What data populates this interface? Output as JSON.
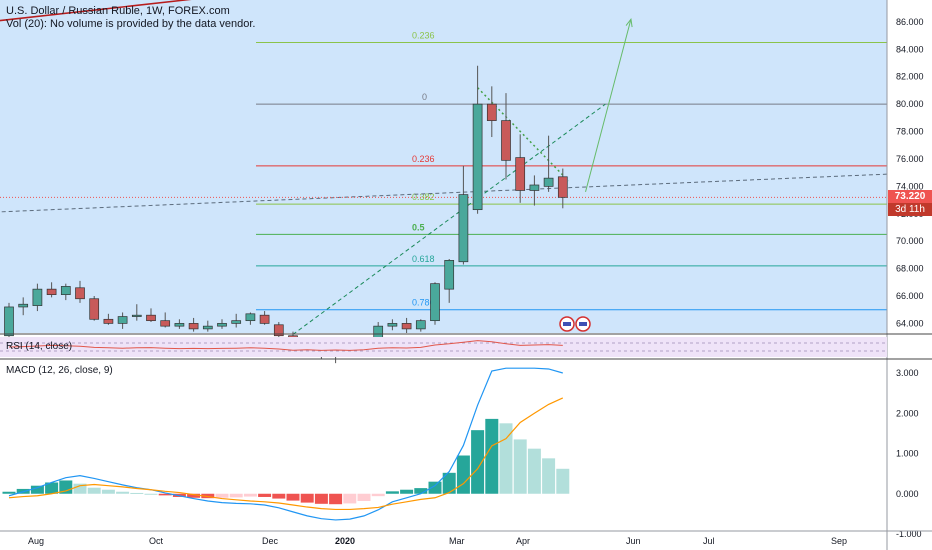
{
  "header": {
    "title": "U.S. Dollar / Russian Ruble, 1W, FOREX.com",
    "volume_note": "Vol (20): No volume is provided by the data vendor."
  },
  "price_tags": {
    "last_price": "73.220",
    "countdown": "3d 11h"
  },
  "colors": {
    "background_shade": "#cfe5fb",
    "bull": "#26a69a",
    "bear": "#ef5350",
    "candle_fill_up": "#4aa89b",
    "candle_fill_down": "#c85a5a",
    "macd_line": "#2196f3",
    "signal_line": "#ff9800",
    "rsi_line": "#e1574b"
  },
  "chart_data": [
    {
      "type": "candlestick",
      "title": "U.S. Dollar / Russian Ruble, 1W, FOREX.com",
      "xlabel": "",
      "ylabel": "",
      "x_tick_labels": [
        "Aug",
        "Oct",
        "Dec",
        "2020",
        "Mar",
        "Apr",
        "Jun",
        "Jul",
        "Sep"
      ],
      "y_tick_labels": [
        "64.000",
        "66.000",
        "68.000",
        "70.000",
        "72.000",
        "74.000",
        "76.000",
        "78.000",
        "80.000",
        "82.000",
        "84.000",
        "86.000"
      ],
      "ylim": [
        63.3,
        87.6
      ],
      "grid": false,
      "fib_levels": [
        {
          "label": "0.236",
          "price": 84.5,
          "color": "#8bc34a"
        },
        {
          "label": "0",
          "price": 80.0,
          "color": "#787b86"
        },
        {
          "label": "0.236",
          "price": 75.5,
          "color": "#e53935"
        },
        {
          "label": "0.382",
          "price": 72.7,
          "color": "#8bc34a"
        },
        {
          "label": "0.5",
          "price": 70.5,
          "color": "#4caf50"
        },
        {
          "label": "0.618",
          "price": 68.2,
          "color": "#26a69a"
        },
        {
          "label": "0.786",
          "price": 65.0,
          "color": "#2196f3"
        }
      ],
      "candles": [
        {
          "o": 63.1,
          "h": 65.5,
          "l": 63.0,
          "c": 65.2
        },
        {
          "o": 65.2,
          "h": 65.9,
          "l": 64.6,
          "c": 65.4
        },
        {
          "o": 65.3,
          "h": 66.9,
          "l": 64.9,
          "c": 66.5
        },
        {
          "o": 66.5,
          "h": 67.0,
          "l": 65.9,
          "c": 66.1
        },
        {
          "o": 66.1,
          "h": 66.9,
          "l": 65.7,
          "c": 66.7
        },
        {
          "o": 66.6,
          "h": 67.1,
          "l": 65.5,
          "c": 65.8
        },
        {
          "o": 65.8,
          "h": 66.0,
          "l": 64.2,
          "c": 64.3
        },
        {
          "o": 64.3,
          "h": 64.7,
          "l": 63.9,
          "c": 64.0
        },
        {
          "o": 64.0,
          "h": 64.8,
          "l": 63.6,
          "c": 64.5
        },
        {
          "o": 64.5,
          "h": 65.4,
          "l": 64.2,
          "c": 64.6
        },
        {
          "o": 64.6,
          "h": 65.1,
          "l": 64.1,
          "c": 64.2
        },
        {
          "o": 64.2,
          "h": 64.8,
          "l": 63.7,
          "c": 63.8
        },
        {
          "o": 63.8,
          "h": 64.3,
          "l": 63.6,
          "c": 64.0
        },
        {
          "o": 64.0,
          "h": 64.4,
          "l": 63.4,
          "c": 63.6
        },
        {
          "o": 63.6,
          "h": 64.2,
          "l": 63.4,
          "c": 63.8
        },
        {
          "o": 63.8,
          "h": 64.3,
          "l": 63.6,
          "c": 64.0
        },
        {
          "o": 64.0,
          "h": 64.7,
          "l": 63.7,
          "c": 64.2
        },
        {
          "o": 64.2,
          "h": 64.8,
          "l": 63.9,
          "c": 64.7
        },
        {
          "o": 64.6,
          "h": 64.9,
          "l": 63.9,
          "c": 64.0
        },
        {
          "o": 63.9,
          "h": 64.1,
          "l": 62.9,
          "c": 63.1
        },
        {
          "o": 63.1,
          "h": 63.4,
          "l": 61.8,
          "c": 62.0
        },
        {
          "o": 62.0,
          "h": 62.7,
          "l": 61.6,
          "c": 62.5
        },
        {
          "o": 62.4,
          "h": 62.8,
          "l": 61.4,
          "c": 61.6
        },
        {
          "o": 61.6,
          "h": 62.4,
          "l": 61.1,
          "c": 62.2
        },
        {
          "o": 62.2,
          "h": 62.8,
          "l": 61.7,
          "c": 61.8
        },
        {
          "o": 61.8,
          "h": 62.6,
          "l": 61.7,
          "c": 62.3
        },
        {
          "o": 62.3,
          "h": 64.1,
          "l": 62.1,
          "c": 63.8
        },
        {
          "o": 63.8,
          "h": 64.3,
          "l": 63.5,
          "c": 64.0
        },
        {
          "o": 64.0,
          "h": 64.4,
          "l": 63.3,
          "c": 63.6
        },
        {
          "o": 63.6,
          "h": 64.3,
          "l": 63.4,
          "c": 64.2
        },
        {
          "o": 64.2,
          "h": 67.0,
          "l": 63.9,
          "c": 66.9
        },
        {
          "o": 66.5,
          "h": 68.7,
          "l": 65.5,
          "c": 68.6
        },
        {
          "o": 68.5,
          "h": 75.5,
          "l": 68.3,
          "c": 73.4
        },
        {
          "o": 72.3,
          "h": 82.8,
          "l": 72.0,
          "c": 80.0
        },
        {
          "o": 80.0,
          "h": 81.3,
          "l": 77.6,
          "c": 78.8
        },
        {
          "o": 78.8,
          "h": 80.8,
          "l": 74.5,
          "c": 75.9
        },
        {
          "o": 76.1,
          "h": 77.8,
          "l": 72.8,
          "c": 73.7
        },
        {
          "o": 73.7,
          "h": 74.8,
          "l": 72.6,
          "c": 74.1
        },
        {
          "o": 74.0,
          "h": 77.7,
          "l": 73.6,
          "c": 74.6
        },
        {
          "o": 74.7,
          "h": 75.3,
          "l": 72.4,
          "c": 73.2
        }
      ],
      "trendlines": [
        {
          "style": "solid",
          "color": "#b71c1c",
          "from": {
            "bar": -1.5,
            "price": 86.0
          },
          "to": {
            "bar": 61,
            "price": 93.2
          }
        },
        {
          "style": "dashed",
          "color": "#5b6b7c",
          "from": {
            "bar": -1.5,
            "price": 72.1
          },
          "to": {
            "bar": 62,
            "price": 74.9
          }
        },
        {
          "style": "dashed",
          "color": "#1b8a5a",
          "from": {
            "bar": 20,
            "price": 63.2
          },
          "to": {
            "bar": 42,
            "price": 80.0
          }
        },
        {
          "style": "dotted",
          "color": "#43a047",
          "from": {
            "bar": 33,
            "price": 81.2
          },
          "to": {
            "bar": 39.4,
            "price": 74.4
          }
        },
        {
          "style": "arrow",
          "color": "#66bb6a",
          "from": {
            "bar": 40.6,
            "price": 73.6
          },
          "to": {
            "bar": 43.8,
            "price": 86.2
          }
        }
      ]
    },
    {
      "type": "line",
      "title": "RSI (14, close)",
      "xlabel": "",
      "ylabel": "",
      "ylim": [
        0,
        100
      ],
      "bands": [
        30,
        70
      ],
      "series": [
        {
          "values": [
            50,
            52,
            55,
            58,
            56,
            54,
            48,
            46,
            44,
            46,
            47,
            44,
            42,
            43,
            42,
            43,
            44,
            46,
            44,
            40,
            34,
            36,
            33,
            35,
            33,
            36,
            44,
            46,
            45,
            48,
            60,
            66,
            74,
            82,
            76,
            66,
            58,
            60,
            62,
            58
          ]
        }
      ]
    },
    {
      "type": "bar",
      "title": "MACD (12, 26, close, 9)",
      "xlabel": "",
      "ylabel": "",
      "ylim": [
        -1.0,
        3.0
      ],
      "y_tick_labels": [
        "-1.000",
        "0.000",
        "1.000",
        "2.000",
        "3.000"
      ],
      "x_tick_labels": [
        "Aug",
        "Oct",
        "Dec",
        "2020",
        "Mar",
        "Apr",
        "Jun",
        "Jul",
        "Sep"
      ],
      "series": [
        {
          "values": [
            0.05,
            0.12,
            0.2,
            0.28,
            0.33,
            0.25,
            0.15,
            0.1,
            0.05,
            0.02,
            0.0,
            -0.04,
            -0.08,
            -0.1,
            -0.11,
            -0.1,
            -0.09,
            -0.07,
            -0.08,
            -0.12,
            -0.17,
            -0.22,
            -0.25,
            -0.26,
            -0.24,
            -0.18,
            -0.06,
            0.06,
            0.1,
            0.14,
            0.3,
            0.52,
            0.95,
            1.58,
            1.86,
            1.75,
            1.35,
            1.12,
            0.88,
            0.62
          ]
        },
        {
          "values": [
            -0.05,
            0.05,
            0.15,
            0.28,
            0.4,
            0.45,
            0.38,
            0.3,
            0.22,
            0.15,
            0.1,
            0.02,
            -0.05,
            -0.12,
            -0.18,
            -0.22,
            -0.24,
            -0.25,
            -0.28,
            -0.35,
            -0.45,
            -0.55,
            -0.62,
            -0.65,
            -0.63,
            -0.55,
            -0.4,
            -0.2,
            -0.1,
            0.0,
            0.2,
            0.55,
            1.2,
            2.2,
            3.05,
            3.12,
            3.12,
            3.12,
            3.1,
            3.0
          ]
        },
        {
          "values": [
            -0.1,
            -0.07,
            -0.05,
            0.0,
            0.07,
            0.2,
            0.23,
            0.2,
            0.17,
            0.13,
            0.1,
            0.06,
            0.03,
            -0.02,
            -0.07,
            -0.12,
            -0.15,
            -0.18,
            -0.2,
            -0.23,
            -0.28,
            -0.33,
            -0.37,
            -0.39,
            -0.39,
            -0.37,
            -0.34,
            -0.26,
            -0.2,
            -0.14,
            -0.1,
            0.03,
            0.25,
            0.62,
            1.19,
            1.37,
            1.77,
            2.0,
            2.22,
            2.38
          ]
        }
      ]
    }
  ]
}
